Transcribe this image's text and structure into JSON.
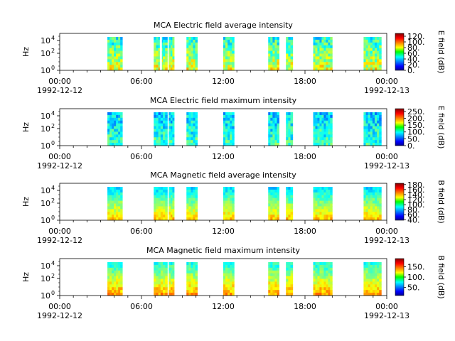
{
  "chart_data": [
    {
      "type": "heatmap",
      "title": "MCA  Electric field average intensity",
      "ylabel": "Hz",
      "y_scale": "log",
      "y_ticks": [
        "10",
        "10",
        "10"
      ],
      "y_tick_exps": [
        "0",
        "2",
        "4"
      ],
      "x_ticks": [
        "00:00",
        "06:00",
        "12:00",
        "18:00",
        "00:00"
      ],
      "x_dates": [
        "1992-12-12",
        "1992-12-13"
      ],
      "colorbar_label": "E field (dB)",
      "colorbar_ticks": [
        "0.",
        "20.",
        "40.",
        "60.",
        "80.",
        "100.",
        "120."
      ],
      "colorbar_range": [
        0,
        130
      ],
      "data_intervals_hours": [
        [
          3.5,
          4.6
        ],
        [
          6.9,
          7.9
        ],
        [
          8.0,
          8.4
        ],
        [
          9.3,
          10.1
        ],
        [
          12.0,
          12.8
        ],
        [
          15.3,
          16.1
        ],
        [
          16.6,
          17.1
        ],
        [
          18.6,
          20.0
        ],
        [
          22.3,
          23.6
        ]
      ],
      "missing_bands_hours": [
        [
          7.35,
          7.5
        ]
      ]
    },
    {
      "type": "heatmap",
      "title": "MCA  Electric field maximum intensity",
      "ylabel": "Hz",
      "y_scale": "log",
      "y_ticks": [
        "10",
        "10",
        "10"
      ],
      "y_tick_exps": [
        "0",
        "2",
        "4"
      ],
      "x_ticks": [
        "00:00",
        "06:00",
        "12:00",
        "18:00",
        "00:00"
      ],
      "x_dates": [
        "1992-12-12",
        "1992-12-13"
      ],
      "colorbar_label": "E field (dB)",
      "colorbar_ticks": [
        "0.",
        "50.",
        "100.",
        "150.",
        "200.",
        "250."
      ],
      "colorbar_range": [
        0,
        270
      ],
      "data_intervals_hours": [
        [
          3.5,
          4.6
        ],
        [
          6.9,
          7.9
        ],
        [
          8.0,
          8.4
        ],
        [
          9.3,
          10.1
        ],
        [
          12.0,
          12.8
        ],
        [
          15.3,
          16.1
        ],
        [
          16.6,
          17.1
        ],
        [
          18.6,
          20.0
        ],
        [
          22.3,
          23.6
        ]
      ],
      "missing_bands_hours": []
    },
    {
      "type": "heatmap",
      "title": "MCA  Magnetic field average intensity",
      "ylabel": "Hz",
      "y_scale": "log",
      "y_ticks": [
        "10",
        "10",
        "10"
      ],
      "y_tick_exps": [
        "0",
        "2",
        "4"
      ],
      "x_ticks": [
        "00:00",
        "06:00",
        "12:00",
        "18:00",
        "00:00"
      ],
      "x_dates": [
        "1992-12-12",
        "1992-12-13"
      ],
      "colorbar_label": "B field (dB)",
      "colorbar_ticks": [
        "40.",
        "60.",
        "80.",
        "100.",
        "120.",
        "140.",
        "160.",
        "180."
      ],
      "colorbar_range": [
        38,
        185
      ],
      "data_intervals_hours": [
        [
          3.5,
          4.6
        ],
        [
          6.9,
          7.9
        ],
        [
          8.0,
          8.4
        ],
        [
          9.3,
          10.1
        ],
        [
          12.0,
          12.8
        ],
        [
          15.3,
          16.1
        ],
        [
          16.6,
          17.1
        ],
        [
          18.6,
          20.0
        ],
        [
          22.3,
          23.6
        ]
      ],
      "missing_bands_hours": []
    },
    {
      "type": "heatmap",
      "title": "MCA  Magnetic field maximum intensity",
      "ylabel": "Hz",
      "y_scale": "log",
      "y_ticks": [
        "10",
        "10",
        "10"
      ],
      "y_tick_exps": [
        "0",
        "2",
        "4"
      ],
      "x_ticks": [
        "00:00",
        "06:00",
        "12:00",
        "18:00",
        "00:00"
      ],
      "x_dates": [
        "1992-12-12",
        "1992-12-13"
      ],
      "colorbar_label": "B field (dB)",
      "colorbar_ticks": [
        "50.",
        "100.",
        "150."
      ],
      "colorbar_range": [
        10,
        190
      ],
      "data_intervals_hours": [
        [
          3.5,
          4.6
        ],
        [
          6.9,
          7.9
        ],
        [
          8.0,
          8.4
        ],
        [
          9.3,
          10.1
        ],
        [
          12.0,
          12.8
        ],
        [
          15.3,
          16.1
        ],
        [
          16.6,
          17.1
        ],
        [
          18.6,
          20.0
        ],
        [
          22.3,
          23.6
        ]
      ],
      "missing_bands_hours": []
    }
  ]
}
